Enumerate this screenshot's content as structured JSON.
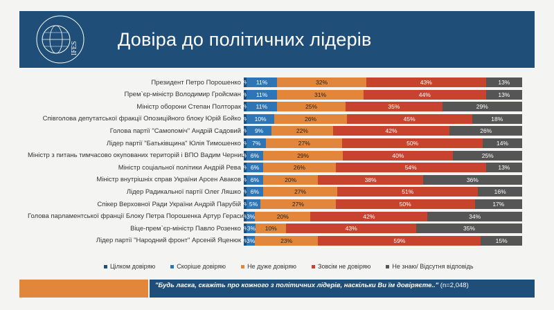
{
  "header": {
    "title": "Довіра до політичних лідерів",
    "logo_text": "IFES"
  },
  "chart_data": {
    "type": "bar",
    "orientation": "horizontal",
    "stacked": true,
    "percent_scale": true,
    "categories": [
      "Президент Петро Порошенко",
      "Прем`єр-міністр Володимир Гройсман",
      "Міністр оборони Степан Полторак",
      "Співголова депутатської фракції Опозиційного блоку Юрій Бойко",
      "Голова партії \"Самопоміч\" Андрій Садовий",
      "Лідер партії \"Батьківщина\" Юлія Тимошенко",
      "Міністр з питань тимчасово окупованих територій і ВПО Вадим Черниш",
      "Міністр соціальної політики Андрій Рева",
      "Міністр внутрішніх справ України Арсен Аваков",
      "Лідер Радикальної партії Олег Ляшко",
      "Спікер Верховної Ради України Андрій Парубій",
      "Голова парламентської франції Блоку Петра Порошенка Артур Герасимов",
      "Віце-прем`єр-міністр Павло Розенко",
      "Лідер партії \"Народний фронт\" Арсеній Яценюк"
    ],
    "series": [
      {
        "name": "Цілком довіряю",
        "color": "#1f4e79",
        "values": [
          1,
          1,
          1,
          1,
          1,
          1,
          1,
          1,
          1,
          1,
          1,
          1,
          1,
          1
        ],
        "labels": [
          "%",
          "%",
          "%",
          "%",
          "%",
          "%",
          "%",
          "%",
          "%",
          "%",
          "%",
          "%",
          "%",
          "%"
        ]
      },
      {
        "name": "Скоріше довіряю",
        "color": "#2e75b6",
        "values": [
          11,
          11,
          11,
          10,
          9,
          7,
          6,
          6,
          6,
          6,
          5,
          3,
          3,
          3
        ],
        "labels": [
          "11%",
          "11%",
          "11%",
          "10%",
          "9%",
          "7%",
          "6%",
          "6%",
          "6%",
          "6%",
          "5%",
          "3%",
          "3%",
          "3%"
        ]
      },
      {
        "name": "Не дуже довіряю",
        "color": "#e1863a",
        "values": [
          32,
          31,
          25,
          26,
          22,
          27,
          29,
          26,
          20,
          27,
          27,
          20,
          10,
          23
        ],
        "labels": [
          "32%",
          "31%",
          "25%",
          "26%",
          "22%",
          "27%",
          "29%",
          "26%",
          "20%",
          "27%",
          "27%",
          "20%",
          "10%",
          "23%"
        ]
      },
      {
        "name": "Зовсім не довіряю",
        "color": "#c8432e",
        "values": [
          43,
          44,
          35,
          45,
          42,
          50,
          40,
          54,
          38,
          51,
          50,
          42,
          43,
          59
        ],
        "labels": [
          "43%",
          "44%",
          "35%",
          "45%",
          "42%",
          "50%",
          "40%",
          "54%",
          "38%",
          "51%",
          "50%",
          "42%",
          "43%",
          "59%"
        ]
      },
      {
        "name": "Не знаю/ Відсутня відповідь",
        "color": "#555555",
        "values": [
          13,
          13,
          29,
          18,
          26,
          14,
          25,
          13,
          36,
          16,
          17,
          34,
          35,
          15
        ],
        "labels": [
          "13%",
          "13%",
          "29%",
          "18%",
          "26%",
          "14%",
          "25%",
          "13%",
          "36%",
          "16%",
          "17%",
          "34%",
          "35%",
          "15%"
        ]
      }
    ]
  },
  "legend": [
    {
      "label": "Цілком довіряю",
      "color": "#1f4e79"
    },
    {
      "label": "Скоріше довіряю",
      "color": "#2e75b6"
    },
    {
      "label": "Не дуже довіряю",
      "color": "#e1863a"
    },
    {
      "label": "Зовсім не довіряю",
      "color": "#c8432e"
    },
    {
      "label": "Не знаю/ Відсутня відповідь",
      "color": "#555555"
    }
  ],
  "footer": {
    "question": "\"Будь ласка, скажіть про кожного з політичних лідерів, наскільки Ви їм довіряєте..\"",
    "sample": "(n=2,048)"
  }
}
